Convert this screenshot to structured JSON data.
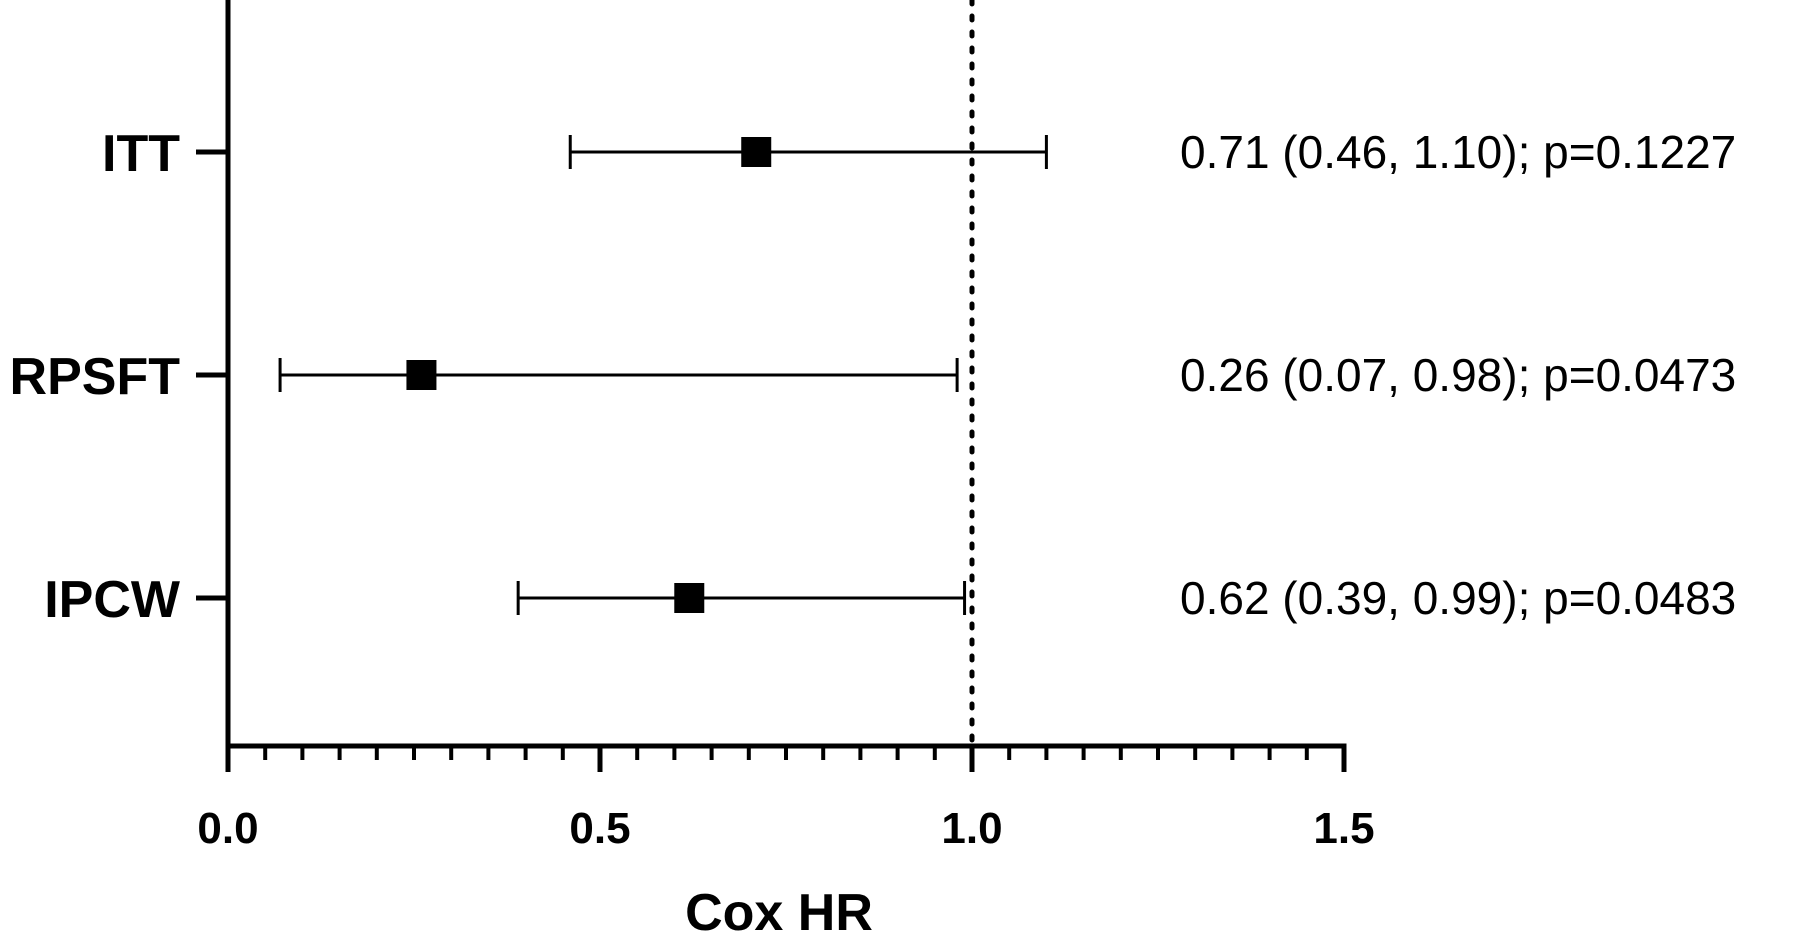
{
  "chart_data": {
    "type": "scatter",
    "subtype": "forest-plot",
    "xlabel": "Cox HR",
    "ylabel": "",
    "xlim": [
      0.0,
      1.5
    ],
    "x_ticks": [
      "0.0",
      "0.5",
      "1.0",
      "1.5"
    ],
    "minor_tick_step": 0.05,
    "reference_line": {
      "x": 1.0,
      "style": "dotted"
    },
    "grid": false,
    "legend": "none",
    "categories": [
      "ITT",
      "RPSFT",
      "IPCW"
    ],
    "series": [
      {
        "points": [
          {
            "category": "ITT",
            "hr": 0.71,
            "lower": 0.46,
            "upper": 1.1,
            "label": "0.71 (0.46, 1.10); p=0.1227"
          },
          {
            "category": "RPSFT",
            "hr": 0.26,
            "lower": 0.07,
            "upper": 0.98,
            "label": "0.26 (0.07, 0.98); p=0.0473"
          },
          {
            "category": "IPCW",
            "hr": 0.62,
            "lower": 0.39,
            "upper": 0.99,
            "label": "0.62 (0.39, 0.99); p=0.0483"
          }
        ]
      }
    ],
    "colors": {
      "marker": "#000000",
      "line": "#000000"
    }
  }
}
